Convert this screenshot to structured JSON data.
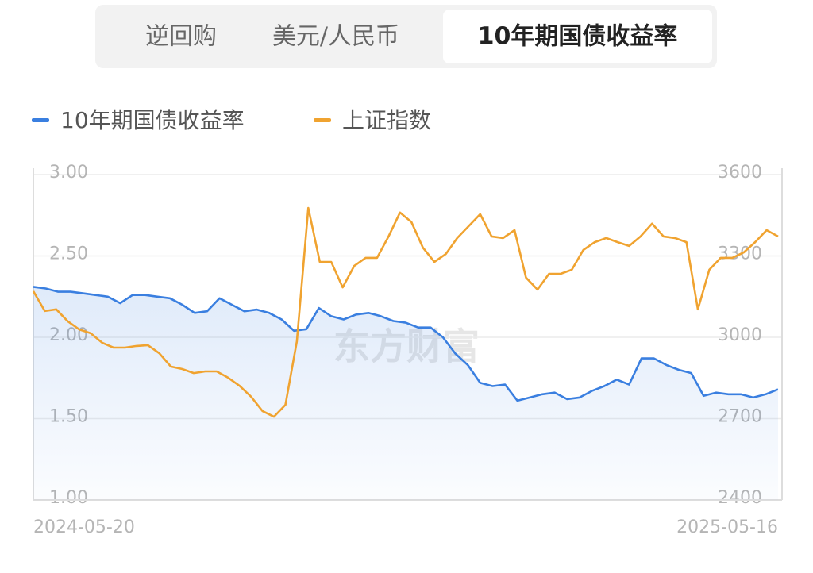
{
  "tabs": [
    "逆回购",
    "美元/人民币",
    "10年期国债收益率"
  ],
  "selected_tab": 2,
  "chart_data": {
    "type": "line",
    "watermark": "东方财富",
    "xlim": [
      "2024-05-20",
      "2025-05-16"
    ],
    "ylim": [
      1,
      3
    ],
    "yticks": [
      {
        "value": 1,
        "label": "1.00"
      },
      {
        "value": 1.5,
        "label": "1.50"
      },
      {
        "value": 2,
        "label": "2.00"
      },
      {
        "value": 2.5,
        "label": "2.50"
      },
      {
        "value": 3,
        "label": "3.00"
      }
    ],
    "y2lim": [
      2400,
      3600
    ],
    "y2ticks": [
      2400,
      2700,
      3000,
      3300,
      3600
    ],
    "grid": true,
    "series": [
      {
        "name": "10年期国债收益率",
        "color": "#3a7fe0",
        "area": true,
        "values": [
          2.31,
          2.3,
          2.28,
          2.28,
          2.27,
          2.26,
          2.25,
          2.21,
          2.26,
          2.26,
          2.25,
          2.24,
          2.2,
          2.15,
          2.16,
          2.24,
          2.2,
          2.16,
          2.17,
          2.15,
          2.11,
          2.04,
          2.05,
          2.18,
          2.13,
          2.11,
          2.14,
          2.15,
          2.13,
          2.1,
          2.09,
          2.06,
          2.06,
          2.0,
          1.9,
          1.83,
          1.72,
          1.7,
          1.71,
          1.61,
          1.63,
          1.65,
          1.66,
          1.62,
          1.63,
          1.67,
          1.7,
          1.74,
          1.71,
          1.87,
          1.87,
          1.83,
          1.8,
          1.78,
          1.64,
          1.66,
          1.65,
          1.65,
          1.63,
          1.65,
          1.68
        ]
      },
      {
        "name": "上证指数",
        "color": "#f0a330",
        "axis": "y2",
        "values": [
          3170,
          3097,
          3103,
          3059,
          3029,
          3015,
          2980,
          2962,
          2962,
          2968,
          2971,
          2941,
          2892,
          2883,
          2868,
          2874,
          2874,
          2851,
          2821,
          2781,
          2728,
          2707,
          2751,
          2985,
          3477,
          3278,
          3278,
          3184,
          3263,
          3293,
          3293,
          3372,
          3460,
          3425,
          3331,
          3278,
          3307,
          3366,
          3410,
          3454,
          3372,
          3366,
          3395,
          3220,
          3176,
          3234,
          3234,
          3249,
          3322,
          3351,
          3366,
          3351,
          3337,
          3372,
          3419,
          3372,
          3366,
          3351,
          3103,
          3249,
          3293,
          3293,
          3313,
          3351,
          3395,
          3372
        ]
      }
    ]
  }
}
